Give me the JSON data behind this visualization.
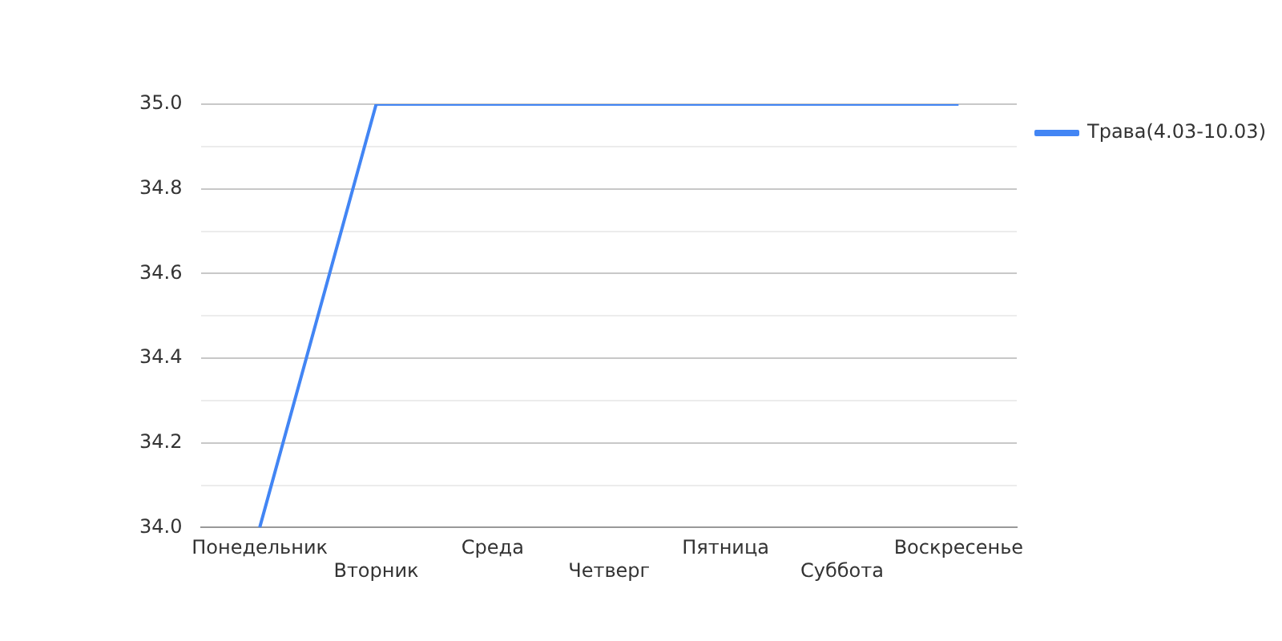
{
  "chart_data": {
    "type": "line",
    "categories": [
      "Понедельник",
      "Вторник",
      "Среда",
      "Четверг",
      "Пятница",
      "Суббота",
      "Воскресенье"
    ],
    "series": [
      {
        "name": "Трава(4.03-10.03)",
        "color": "#4285f4",
        "values": [
          34,
          35,
          35,
          35,
          35,
          35,
          35
        ]
      }
    ],
    "ylim": [
      34,
      35
    ],
    "yticks": [
      {
        "value": 34.0,
        "label": "34.0"
      },
      {
        "value": 34.1,
        "label": null
      },
      {
        "value": 34.2,
        "label": "34.2"
      },
      {
        "value": 34.3,
        "label": null
      },
      {
        "value": 34.4,
        "label": "34.4"
      },
      {
        "value": 34.5,
        "label": null
      },
      {
        "value": 34.6,
        "label": "34.6"
      },
      {
        "value": 34.7,
        "label": null
      },
      {
        "value": 34.8,
        "label": "34.8"
      },
      {
        "value": 34.9,
        "label": null
      },
      {
        "value": 35.0,
        "label": "35.0"
      }
    ],
    "grid": "y",
    "legend": "top right",
    "marker": "none",
    "line_style": "solid"
  }
}
